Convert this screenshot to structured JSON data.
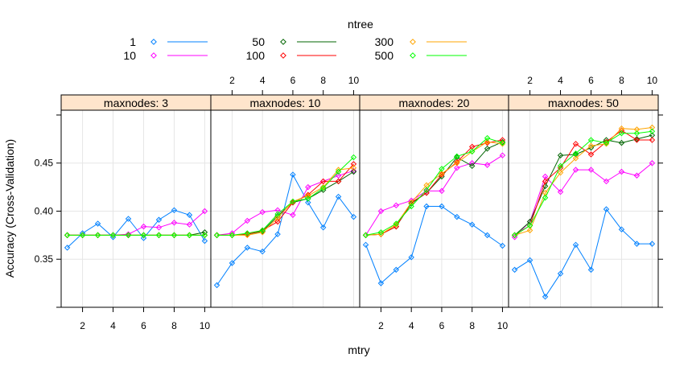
{
  "chart_data": {
    "type": "line",
    "layout": "lattice 4 panels in a row",
    "xlabel": "mtry",
    "ylabel": "Accuracy (Cross-Validation)",
    "xlim": [
      0.6,
      10.4
    ],
    "ylim": [
      0.3,
      0.505
    ],
    "x_ticks": [
      2,
      4,
      6,
      8,
      10
    ],
    "y_ticks": [
      0.35,
      0.4,
      0.45
    ],
    "y_tick_labels": [
      "0.35",
      "0.40",
      "0.45"
    ],
    "x": [
      1,
      2,
      3,
      4,
      5,
      6,
      7,
      8,
      9,
      10
    ],
    "legend": {
      "title": "ntree",
      "position": "top",
      "entries": [
        {
          "label": "1",
          "color": "#0080ff"
        },
        {
          "label": "10",
          "color": "#ff00ff"
        },
        {
          "label": "50",
          "color": "#006400"
        },
        {
          "label": "100",
          "color": "#ff0000"
        },
        {
          "label": "300",
          "color": "#ffa500"
        },
        {
          "label": "500",
          "color": "#00ff00"
        }
      ]
    },
    "panels": [
      {
        "strip": "maxnodes:  3",
        "series": [
          {
            "name": "1",
            "values": [
              0.362,
              0.377,
              0.387,
              0.373,
              0.392,
              0.372,
              0.391,
              0.401,
              0.396,
              0.369
            ]
          },
          {
            "name": "10",
            "values": [
              0.375,
              0.375,
              0.375,
              0.375,
              0.376,
              0.384,
              0.383,
              0.388,
              0.386,
              0.4
            ]
          },
          {
            "name": "50",
            "values": [
              0.375,
              0.375,
              0.375,
              0.375,
              0.375,
              0.375,
              0.375,
              0.375,
              0.375,
              0.378
            ]
          },
          {
            "name": "100",
            "values": [
              0.375,
              0.375,
              0.375,
              0.375,
              0.375,
              0.375,
              0.375,
              0.375,
              0.375,
              0.375
            ]
          },
          {
            "name": "300",
            "values": [
              0.375,
              0.375,
              0.375,
              0.375,
              0.375,
              0.375,
              0.375,
              0.375,
              0.375,
              0.375
            ]
          },
          {
            "name": "500",
            "values": [
              0.375,
              0.375,
              0.375,
              0.375,
              0.375,
              0.375,
              0.375,
              0.375,
              0.375,
              0.375
            ]
          }
        ]
      },
      {
        "strip": "maxnodes: 10",
        "series": [
          {
            "name": "1",
            "values": [
              0.323,
              0.346,
              0.362,
              0.358,
              0.376,
              0.438,
              0.409,
              0.383,
              0.415,
              0.394
            ]
          },
          {
            "name": "10",
            "values": [
              0.375,
              0.377,
              0.39,
              0.399,
              0.401,
              0.396,
              0.425,
              0.431,
              0.437,
              0.442
            ]
          },
          {
            "name": "50",
            "values": [
              0.375,
              0.375,
              0.376,
              0.379,
              0.395,
              0.409,
              0.413,
              0.422,
              0.431,
              0.441
            ]
          },
          {
            "name": "100",
            "values": [
              0.375,
              0.375,
              0.376,
              0.38,
              0.389,
              0.409,
              0.417,
              0.431,
              0.431,
              0.449
            ]
          },
          {
            "name": "300",
            "values": [
              0.375,
              0.375,
              0.375,
              0.378,
              0.393,
              0.41,
              0.416,
              0.425,
              0.443,
              0.445
            ]
          },
          {
            "name": "500",
            "values": [
              0.375,
              0.375,
              0.377,
              0.38,
              0.397,
              0.41,
              0.413,
              0.424,
              0.441,
              0.456
            ]
          }
        ]
      },
      {
        "strip": "maxnodes: 20",
        "series": [
          {
            "name": "1",
            "values": [
              0.365,
              0.325,
              0.339,
              0.352,
              0.405,
              0.405,
              0.394,
              0.386,
              0.375,
              0.364
            ]
          },
          {
            "name": "10",
            "values": [
              0.375,
              0.4,
              0.406,
              0.411,
              0.421,
              0.421,
              0.445,
              0.45,
              0.448,
              0.458
            ]
          },
          {
            "name": "50",
            "values": [
              0.375,
              0.376,
              0.384,
              0.408,
              0.419,
              0.436,
              0.456,
              0.447,
              0.465,
              0.472
            ]
          },
          {
            "name": "100",
            "values": [
              0.375,
              0.376,
              0.384,
              0.409,
              0.419,
              0.438,
              0.451,
              0.467,
              0.471,
              0.474
            ]
          },
          {
            "name": "300",
            "values": [
              0.375,
              0.376,
              0.386,
              0.409,
              0.427,
              0.439,
              0.45,
              0.462,
              0.472,
              0.47
            ]
          },
          {
            "name": "500",
            "values": [
              0.375,
              0.378,
              0.387,
              0.405,
              0.422,
              0.444,
              0.457,
              0.462,
              0.476,
              0.471
            ]
          }
        ]
      },
      {
        "strip": "maxnodes: 50",
        "series": [
          {
            "name": "1",
            "values": [
              0.339,
              0.349,
              0.311,
              0.335,
              0.365,
              0.339,
              0.402,
              0.381,
              0.366,
              0.366
            ]
          },
          {
            "name": "10",
            "values": [
              0.373,
              0.389,
              0.436,
              0.42,
              0.443,
              0.443,
              0.431,
              0.441,
              0.437,
              0.45
            ]
          },
          {
            "name": "50",
            "values": [
              0.375,
              0.389,
              0.426,
              0.458,
              0.459,
              0.466,
              0.474,
              0.471,
              0.475,
              0.479
            ]
          },
          {
            "name": "100",
            "values": [
              0.375,
              0.385,
              0.431,
              0.445,
              0.47,
              0.459,
              0.472,
              0.484,
              0.474,
              0.474
            ]
          },
          {
            "name": "300",
            "values": [
              0.375,
              0.38,
              0.419,
              0.44,
              0.455,
              0.468,
              0.47,
              0.486,
              0.485,
              0.487
            ]
          },
          {
            "name": "500",
            "values": [
              0.375,
              0.385,
              0.414,
              0.447,
              0.46,
              0.474,
              0.471,
              0.481,
              0.481,
              0.483
            ]
          }
        ]
      }
    ]
  }
}
